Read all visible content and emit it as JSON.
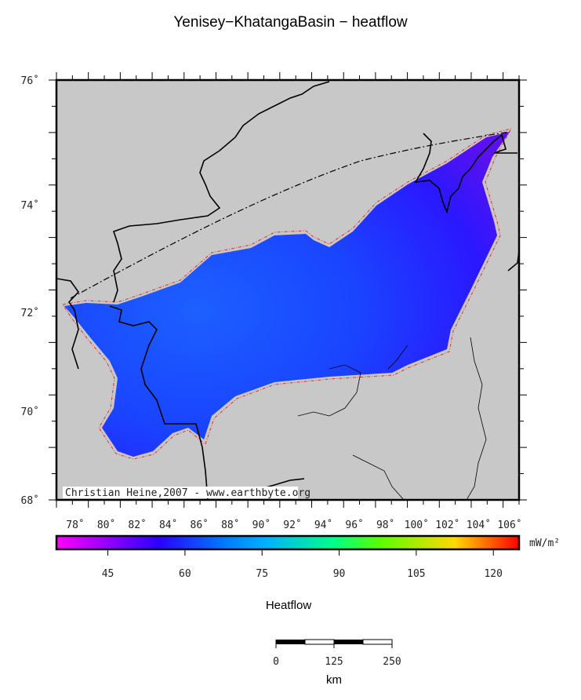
{
  "title": "Yenisey−KhatangaBasin − heatflow",
  "map": {
    "lat_labels": [
      "76˚",
      "74˚",
      "72˚",
      "70˚",
      "68˚"
    ],
    "lon_labels": [
      "78˚",
      "80˚",
      "82˚",
      "84˚",
      "86˚",
      "88˚",
      "90˚",
      "92˚",
      "94˚",
      "96˚",
      "98˚",
      "100˚",
      "102˚",
      "104˚",
      "106˚"
    ],
    "credit": "Christian Heine,2007 - www.earthbyte.org",
    "land_color": "#c8c8c8",
    "outline_color": "#e0302a"
  },
  "colorbar": {
    "unit": "mW/m²",
    "range": [
      35,
      125
    ],
    "ticks": [
      "45",
      "60",
      "75",
      "90",
      "105",
      "120"
    ],
    "stops": [
      "#ff00ff",
      "#2a00ff",
      "#00a8ff",
      "#00ff88",
      "#7dff00",
      "#ffd800",
      "#ff0000"
    ]
  },
  "xlabel": "Heatflow",
  "scalebar": {
    "labels": [
      "0",
      "125",
      "250"
    ],
    "unit": "km"
  }
}
